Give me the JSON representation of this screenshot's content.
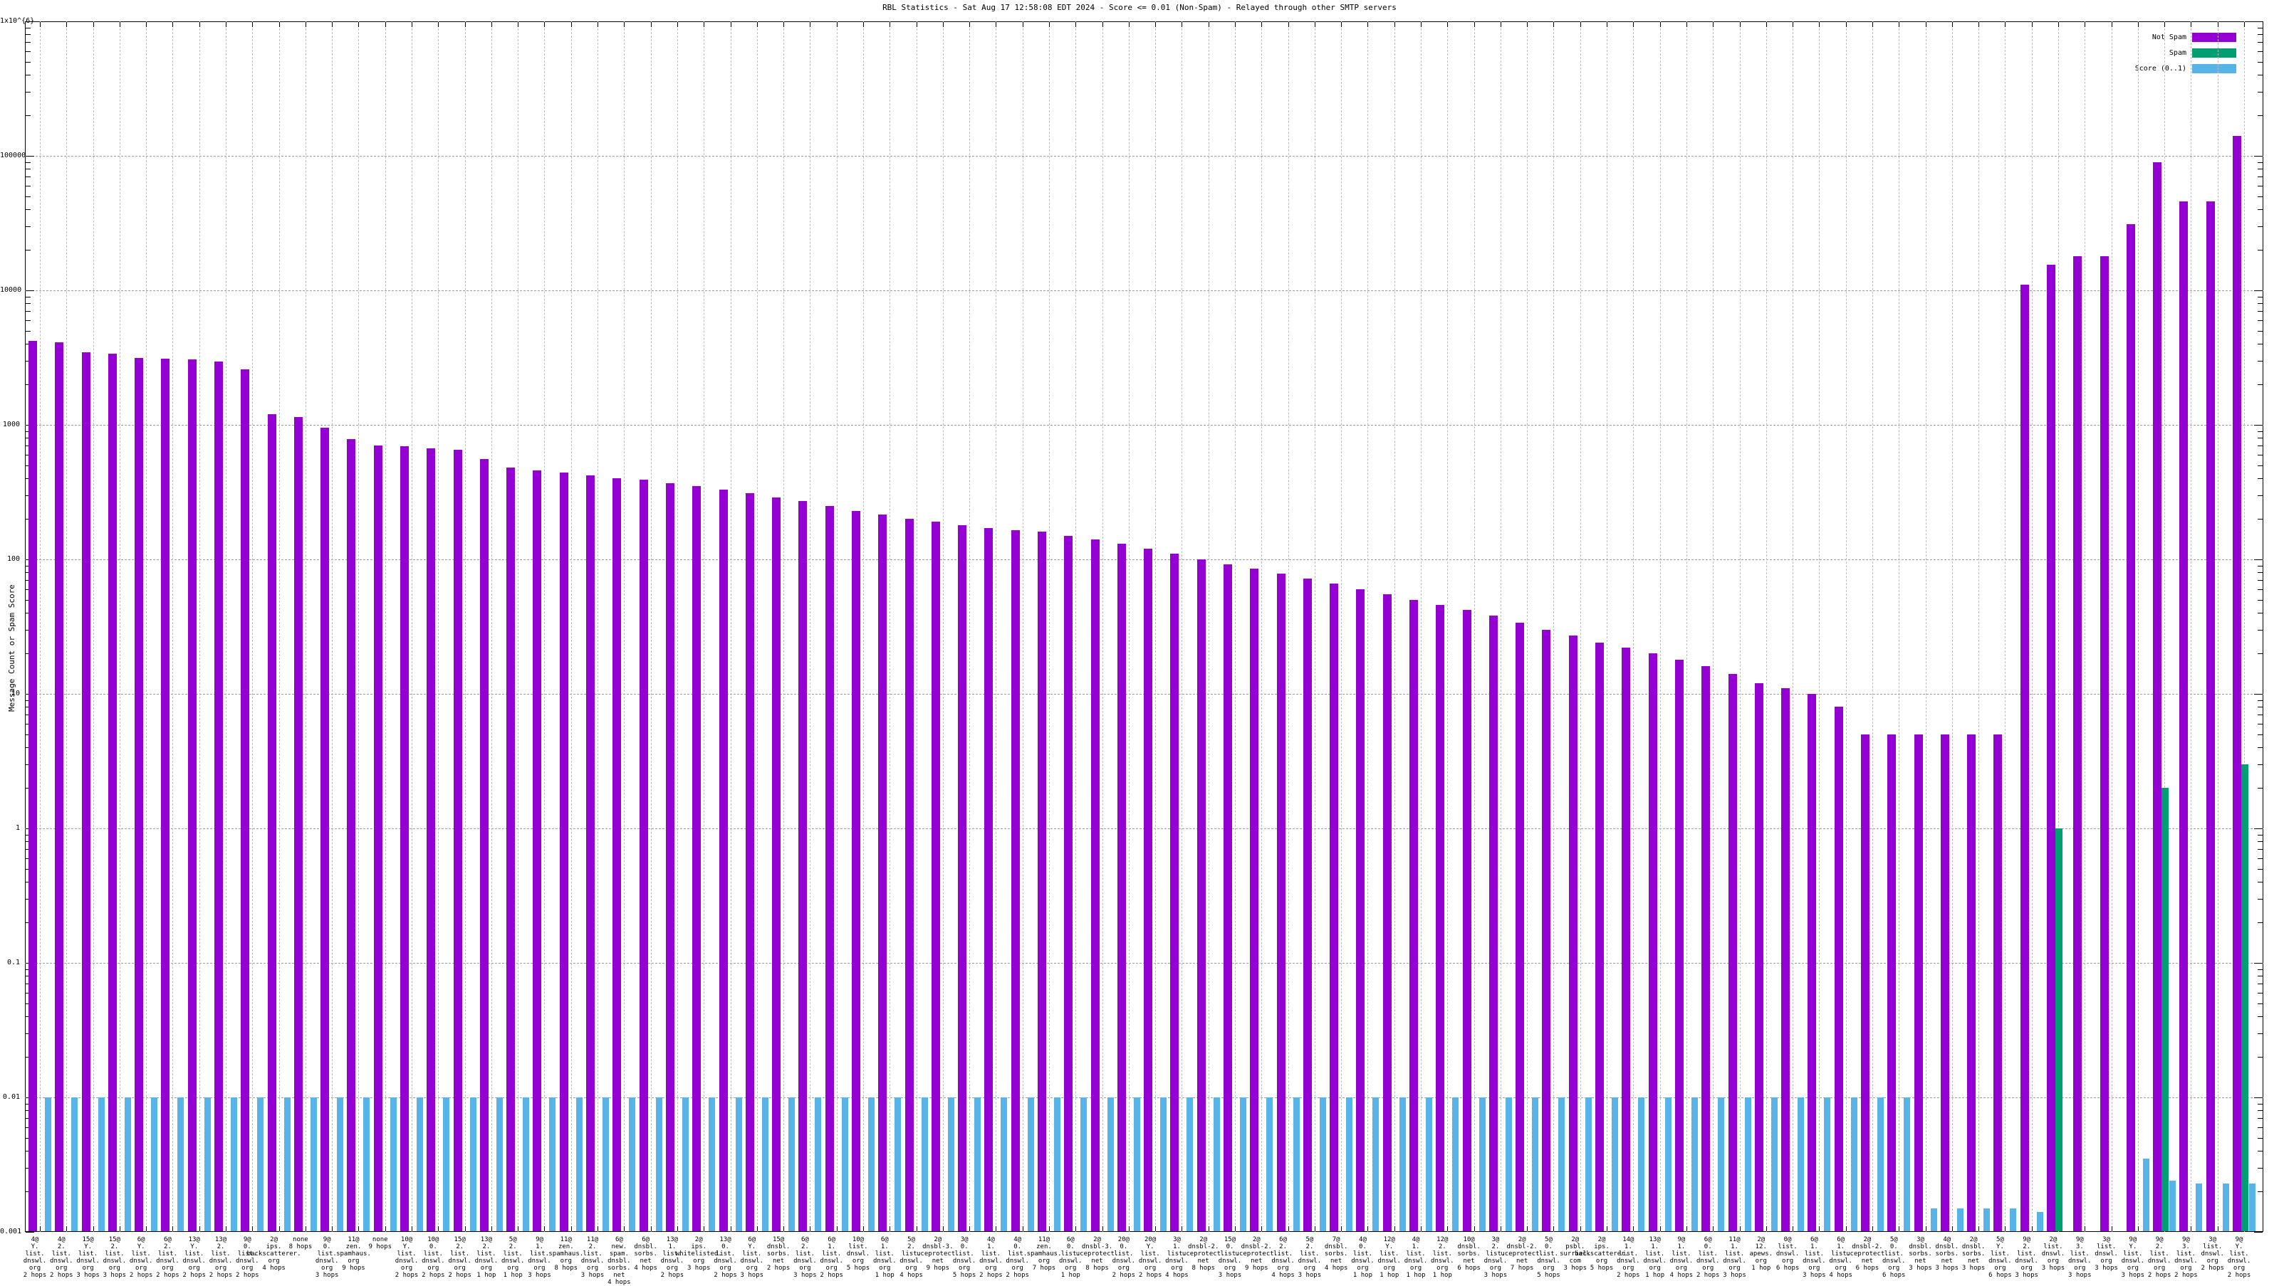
{
  "title": "RBL Statistics - Sat Aug 17 12:58:08 EDT 2024 - Score <= 0.01 (Non-Spam) - Relayed through other SMTP servers",
  "y_axis": {
    "label": "Message Count or Spam Score",
    "ticks": [
      "1x10^{6}",
      "100000",
      "10000",
      "1000",
      "100",
      "10",
      "1",
      "0.1",
      "0.01",
      "0.001"
    ]
  },
  "legend": [
    {
      "label": "Not Spam",
      "color": "#9400d3"
    },
    {
      "label": "Spam",
      "color": "#009e73"
    },
    {
      "label": "Score (0..1)",
      "color": "#56b4e9"
    }
  ],
  "colors": {
    "not_spam": "#9400d3",
    "spam": "#009e73",
    "score": "#56b4e9",
    "grid": "#9e9e9e",
    "vgrid": "#bdbdbd"
  },
  "chart_data": {
    "type": "bar",
    "y_scale": "log",
    "ylim": [
      0.001,
      1000000
    ],
    "grid": true,
    "legend_position": "top-right",
    "series_names": [
      "Not Spam",
      "Spam",
      "Score (0..1)"
    ],
    "bars": {
      "labels": [
        [
          "4@",
          "Y.",
          "list.",
          "dnswl.",
          "org",
          "2 hops"
        ],
        [
          "4@",
          "2.",
          "list.",
          "dnswl.",
          "org",
          "2 hops"
        ],
        [
          "15@",
          "Y.",
          "list.",
          "dnswl.",
          "org",
          "3 hops"
        ],
        [
          "15@",
          "2.",
          "list.",
          "dnswl.",
          "org",
          "3 hops"
        ],
        [
          "6@",
          "Y.",
          "list.",
          "dnswl.",
          "org",
          "2 hops"
        ],
        [
          "6@",
          "2.",
          "list.",
          "dnswl.",
          "org",
          "2 hops"
        ],
        [
          "13@",
          "Y.",
          "list.",
          "dnswl.",
          "org",
          "2 hops"
        ],
        [
          "13@",
          "2.",
          "list.",
          "dnswl.",
          "org",
          "2 hops"
        ],
        [
          "9@",
          "0.",
          "list.",
          "dnswl.",
          "org",
          "2 hops"
        ],
        [
          "2@",
          "ips.",
          "backscatterer.",
          "org",
          "4 hops"
        ],
        [
          "none",
          "8 hops"
        ],
        [
          "9@",
          "0.",
          "list.",
          "dnswl.",
          "org",
          "3 hops"
        ],
        [
          "11@",
          "zen.",
          "spamhaus.",
          "org",
          "9 hops"
        ],
        [
          "none",
          "9 hops"
        ],
        [
          "10@",
          "Y.",
          "list.",
          "dnswl.",
          "org",
          "2 hops"
        ],
        [
          "10@",
          "0.",
          "list.",
          "dnswl.",
          "org",
          "2 hops"
        ],
        [
          "15@",
          "2.",
          "list.",
          "dnswl.",
          "org",
          "2 hops"
        ],
        [
          "13@",
          "2.",
          "list.",
          "dnswl.",
          "org",
          "1 hop"
        ],
        [
          "5@",
          "2.",
          "list.",
          "dnswl.",
          "org",
          "1 hop"
        ],
        [
          "9@",
          "1.",
          "list.",
          "dnswl.",
          "org",
          "3 hops"
        ],
        [
          "11@",
          "zen.",
          "spamhaus.",
          "org",
          "8 hops"
        ],
        [
          "11@",
          "2.",
          "list.",
          "dnswl.",
          "org",
          "3 hops"
        ],
        [
          "6@",
          "new.",
          "spam.",
          "dnsbl.",
          "sorbs.",
          "net",
          "4 hops"
        ],
        [
          "6@",
          "dnsbl.",
          "sorbs.",
          "net",
          "4 hops"
        ],
        [
          "13@",
          "1.",
          "list.",
          "dnswl.",
          "org",
          "2 hops"
        ],
        [
          "2@",
          "ips.",
          "whitelisted.",
          "org",
          "3 hops"
        ],
        [
          "13@",
          "0.",
          "list.",
          "dnswl.",
          "org",
          "2 hops"
        ],
        [
          "6@",
          "Y.",
          "list.",
          "dnswl.",
          "org",
          "3 hops"
        ],
        [
          "15@",
          "dnsbl.",
          "sorbs.",
          "net",
          "2 hops"
        ],
        [
          "6@",
          "2.",
          "list.",
          "dnswl.",
          "org",
          "3 hops"
        ],
        [
          "6@",
          "1.",
          "list.",
          "dnswl.",
          "org",
          "2 hops"
        ],
        [
          "10@",
          "list.",
          "dnswl.",
          "org",
          "5 hops"
        ],
        [
          "6@",
          "1.",
          "list.",
          "dnswl.",
          "org",
          "1 hop"
        ],
        [
          "5@",
          "2.",
          "list.",
          "dnswl.",
          "org",
          "4 hops"
        ],
        [
          "2@",
          "dnsbl-3.",
          "uceprotect.",
          "net",
          "9 hops"
        ],
        [
          "3@",
          "0.",
          "list.",
          "dnswl.",
          "org",
          "5 hops"
        ],
        [
          "4@",
          "1.",
          "list.",
          "dnswl.",
          "org",
          "2 hops"
        ],
        [
          "4@",
          "0.",
          "list.",
          "dnswl.",
          "org",
          "2 hops"
        ],
        [
          "11@",
          "zen.",
          "spamhaus.",
          "org",
          "7 hops"
        ],
        [
          "6@",
          "0.",
          "list.",
          "dnswl.",
          "org",
          "1 hop"
        ],
        [
          "2@",
          "dnsbl-3.",
          "uceprotect.",
          "net",
          "8 hops"
        ],
        [
          "20@",
          "0.",
          "list.",
          "dnswl.",
          "org",
          "2 hops"
        ],
        [
          "20@",
          "Y.",
          "list.",
          "dnswl.",
          "org",
          "2 hops"
        ],
        [
          "3@",
          "1.",
          "list.",
          "dnswl.",
          "org",
          "4 hops"
        ],
        [
          "2@",
          "dnsbl-2.",
          "uceprotect.",
          "net",
          "8 hops"
        ],
        [
          "15@",
          "0.",
          "list.",
          "dnswl.",
          "org",
          "3 hops"
        ],
        [
          "2@",
          "dnsbl-2.",
          "uceprotect.",
          "net",
          "9 hops"
        ],
        [
          "6@",
          "2.",
          "list.",
          "dnswl.",
          "org",
          "4 hops"
        ],
        [
          "5@",
          "2.",
          "list.",
          "dnswl.",
          "org",
          "3 hops"
        ],
        [
          "7@",
          "dnsbl.",
          "sorbs.",
          "net",
          "4 hops"
        ],
        [
          "4@",
          "0.",
          "list.",
          "dnswl.",
          "org",
          "1 hop"
        ],
        [
          "12@",
          "Y.",
          "list.",
          "dnswl.",
          "org",
          "1 hop"
        ],
        [
          "4@",
          "1.",
          "list.",
          "dnswl.",
          "org",
          "1 hop"
        ],
        [
          "12@",
          "2.",
          "list.",
          "dnswl.",
          "org",
          "1 hop"
        ],
        [
          "10@",
          "dnsbl.",
          "sorbs.",
          "net",
          "6 hops"
        ],
        [
          "3@",
          "2.",
          "list.",
          "dnswl.",
          "org",
          "3 hops"
        ],
        [
          "2@",
          "dnsbl-2.",
          "uceprotect.",
          "net",
          "7 hops"
        ],
        [
          "5@",
          "0.",
          "list.",
          "dnswl.",
          "org",
          "5 hops"
        ],
        [
          "2@",
          "psbl.",
          "surriel.",
          "com",
          "3 hops"
        ],
        [
          "2@",
          "ips.",
          "backscatterer.",
          "org",
          "5 hops"
        ],
        [
          "14@",
          "1.",
          "list.",
          "dnswl.",
          "org",
          "2 hops"
        ],
        [
          "13@",
          "1.",
          "list.",
          "dnswl.",
          "org",
          "1 hop"
        ],
        [
          "9@",
          "1.",
          "list.",
          "dnswl.",
          "org",
          "4 hops"
        ],
        [
          "6@",
          "0.",
          "list.",
          "dnswl.",
          "org",
          "2 hops"
        ],
        [
          "11@",
          "1.",
          "list.",
          "dnswl.",
          "org",
          "3 hops"
        ],
        [
          "2@",
          "12.",
          "apews.",
          "org",
          "1 hop"
        ],
        [
          "0@",
          "list.",
          "dnswl.",
          "org",
          "6 hops"
        ],
        [
          "6@",
          "1.",
          "list.",
          "dnswl.",
          "org",
          "3 hops"
        ],
        [
          "6@",
          "1.",
          "list.",
          "dnswl.",
          "org",
          "4 hops"
        ],
        [
          "2@",
          "dnsbl-2.",
          "uceprotect.",
          "net",
          "6 hops"
        ],
        [
          "5@",
          "0.",
          "list.",
          "dnswl.",
          "org",
          "6 hops"
        ],
        [
          "3@",
          "dnsbl.",
          "sorbs.",
          "net",
          "3 hops"
        ],
        [
          "4@",
          "dnsbl.",
          "sorbs.",
          "net",
          "3 hops"
        ],
        [
          "2@",
          "dnsbl.",
          "sorbs.",
          "net",
          "3 hops"
        ],
        [
          "5@",
          "Y.",
          "list.",
          "dnswl.",
          "org",
          "6 hops"
        ],
        [
          "9@",
          "2.",
          "list.",
          "dnswl.",
          "org",
          "3 hops"
        ],
        [
          "2@",
          "list.",
          "dnswl.",
          "org",
          "3 hops"
        ],
        [
          "9@",
          "3.",
          "list.",
          "dnswl.",
          "org",
          "3 hops"
        ],
        [
          "3@",
          "list.",
          "dnswl.",
          "org",
          "3 hops"
        ],
        [
          "9@",
          "Y.",
          "list.",
          "dnswl.",
          "org",
          "3 hops"
        ],
        [
          "9@",
          "2.",
          "list.",
          "dnswl.",
          "org",
          "2 hops"
        ],
        [
          "9@",
          "3.",
          "list.",
          "dnswl.",
          "org",
          "2 hops"
        ],
        [
          "3@",
          "list.",
          "dnswl.",
          "org",
          "2 hops"
        ],
        [
          "9@",
          "Y.",
          "list.",
          "dnswl.",
          "org",
          "2 hops"
        ]
      ],
      "not_spam": [
        4200,
        4100,
        3450,
        3400,
        3150,
        3100,
        3050,
        2950,
        2600,
        1200,
        1150,
        950,
        780,
        700,
        690,
        670,
        650,
        560,
        480,
        460,
        440,
        420,
        400,
        390,
        370,
        350,
        330,
        310,
        290,
        270,
        250,
        230,
        215,
        200,
        190,
        180,
        170,
        165,
        160,
        150,
        140,
        130,
        120,
        110,
        100,
        92,
        85,
        78,
        72,
        66,
        60,
        55,
        50,
        46,
        42,
        38,
        34,
        30,
        27,
        24,
        22,
        20,
        18,
        16,
        14,
        12,
        11,
        10,
        8,
        5,
        5,
        5,
        5,
        5,
        5,
        11000,
        15500,
        18000,
        18000,
        31000,
        90000,
        46000,
        46000,
        140000
      ],
      "spam": [
        0,
        0,
        0,
        0,
        0,
        0,
        0,
        0,
        0,
        0,
        0,
        0,
        0,
        0,
        0,
        0,
        0,
        0,
        0,
        0,
        0,
        0,
        0,
        0,
        0,
        0,
        0,
        0,
        0,
        0,
        0,
        0,
        0,
        0,
        0,
        0,
        0,
        0,
        0,
        0,
        0,
        0,
        0,
        0,
        0,
        0,
        0,
        0,
        0,
        0,
        0,
        0,
        0,
        0,
        0,
        0,
        0,
        0,
        0,
        0,
        0,
        0,
        0,
        0,
        0,
        0,
        0,
        0,
        0,
        0,
        0,
        0,
        0,
        0,
        0,
        0,
        1,
        0,
        0,
        0,
        2,
        0,
        0,
        3
      ],
      "score": [
        0.01,
        0.01,
        0.01,
        0.01,
        0.01,
        0.01,
        0.01,
        0.01,
        0.01,
        0.01,
        0.01,
        0.01,
        0.01,
        0.01,
        0.01,
        0.01,
        0.01,
        0.01,
        0.01,
        0.01,
        0.01,
        0.01,
        0.01,
        0.01,
        0.01,
        0.01,
        0.01,
        0.01,
        0.01,
        0.01,
        0.01,
        0.01,
        0.01,
        0.01,
        0.01,
        0.01,
        0.01,
        0.01,
        0.01,
        0.01,
        0.01,
        0.01,
        0.01,
        0.01,
        0.01,
        0.01,
        0.01,
        0.01,
        0.01,
        0.01,
        0.01,
        0.01,
        0.01,
        0.01,
        0.01,
        0.01,
        0.01,
        0.01,
        0.01,
        0.01,
        0.01,
        0.01,
        0.01,
        0.01,
        0.01,
        0.01,
        0.01,
        0.01,
        0.01,
        0.01,
        0.01,
        0.0015,
        0.0015,
        0.0015,
        0.0015,
        0.0014,
        0.0009,
        0.0008,
        0.0008,
        0.0035,
        0.0024,
        0.0023,
        0.0023,
        0.0023
      ]
    }
  }
}
